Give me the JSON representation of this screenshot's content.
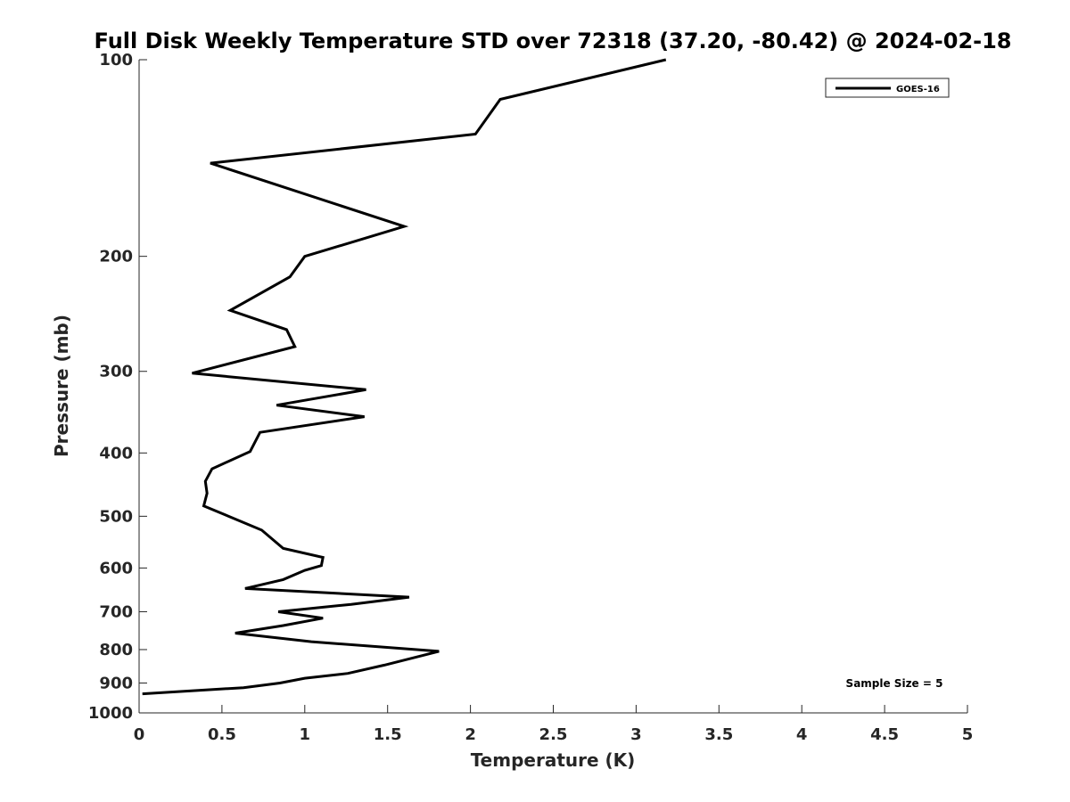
{
  "chart_data": {
    "type": "line",
    "title": "Full Disk Weekly Temperature STD over 72318 (37.20, -80.42) @ 2024-02-18",
    "xlabel": "Temperature (K)",
    "ylabel": "Pressure (mb)",
    "xlim": [
      0,
      5
    ],
    "ylim": [
      100,
      1000
    ],
    "y_scale": "log",
    "y_reversed": true,
    "x_ticks": [
      "0",
      "0.5",
      "1",
      "1.5",
      "2",
      "2.5",
      "3",
      "3.5",
      "4",
      "4.5",
      "5"
    ],
    "y_ticks": [
      "100",
      "200",
      "300",
      "400",
      "500",
      "600",
      "700",
      "800",
      "900",
      "1000"
    ],
    "grid": false,
    "legend": {
      "location": "top-right",
      "entries": [
        "GOES-16"
      ]
    },
    "annotation": "Sample Size = 5",
    "line_color": "#000000",
    "series": [
      {
        "name": "GOES-16",
        "x": [
          3.18,
          2.18,
          2.03,
          0.43,
          1.6,
          1.0,
          0.91,
          0.55,
          0.89,
          0.94,
          0.32,
          1.37,
          0.83,
          1.36,
          0.73,
          0.67,
          0.44,
          0.4,
          0.41,
          0.39,
          0.74,
          0.87,
          1.11,
          1.1,
          1.0,
          0.87,
          0.64,
          1.63,
          1.28,
          0.84,
          1.11,
          0.87,
          0.58,
          1.04,
          1.81,
          1.48,
          1.26,
          1.0,
          0.85,
          0.63,
          0.02
        ],
        "y": [
          100,
          115,
          130,
          144,
          180,
          200,
          215,
          242,
          259,
          275,
          302,
          320,
          338,
          352,
          372,
          398,
          423,
          442,
          461,
          482,
          525,
          560,
          578,
          595,
          605,
          625,
          645,
          665,
          682,
          700,
          716,
          735,
          755,
          778,
          805,
          845,
          870,
          885,
          900,
          915,
          935
        ]
      }
    ]
  }
}
